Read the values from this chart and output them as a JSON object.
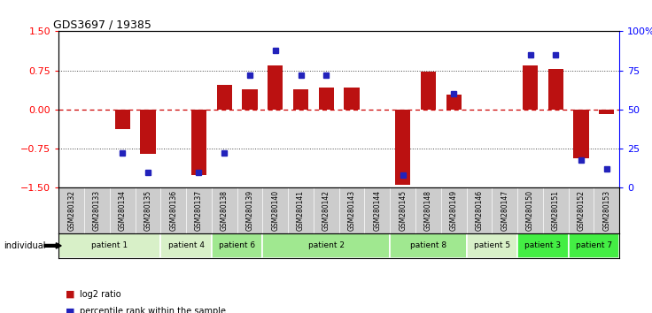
{
  "title": "GDS3697 / 19385",
  "samples": [
    "GSM280132",
    "GSM280133",
    "GSM280134",
    "GSM280135",
    "GSM280136",
    "GSM280137",
    "GSM280138",
    "GSM280139",
    "GSM280140",
    "GSM280141",
    "GSM280142",
    "GSM280143",
    "GSM280144",
    "GSM280145",
    "GSM280148",
    "GSM280149",
    "GSM280146",
    "GSM280147",
    "GSM280150",
    "GSM280151",
    "GSM280152",
    "GSM280153"
  ],
  "log2_ratio": [
    0.0,
    0.0,
    -0.38,
    -0.85,
    0.0,
    -1.25,
    0.48,
    0.38,
    0.84,
    0.38,
    0.42,
    0.42,
    0.0,
    -1.45,
    0.73,
    0.28,
    0.0,
    0.0,
    0.84,
    0.78,
    -0.93,
    -0.08
  ],
  "percentile": [
    null,
    null,
    22,
    10,
    null,
    10,
    22,
    72,
    88,
    72,
    72,
    null,
    null,
    8,
    null,
    60,
    null,
    null,
    85,
    85,
    18,
    12
  ],
  "patients": [
    {
      "label": "patient 1",
      "start": 0,
      "end": 4,
      "color": "#d8f0c8"
    },
    {
      "label": "patient 4",
      "start": 4,
      "end": 6,
      "color": "#d8f0c8"
    },
    {
      "label": "patient 6",
      "start": 6,
      "end": 8,
      "color": "#a0e890"
    },
    {
      "label": "patient 2",
      "start": 8,
      "end": 13,
      "color": "#a0e890"
    },
    {
      "label": "patient 8",
      "start": 13,
      "end": 16,
      "color": "#a0e890"
    },
    {
      "label": "patient 5",
      "start": 16,
      "end": 18,
      "color": "#d8f0c8"
    },
    {
      "label": "patient 3",
      "start": 18,
      "end": 20,
      "color": "#44ee44"
    },
    {
      "label": "patient 7",
      "start": 20,
      "end": 22,
      "color": "#44ee44"
    }
  ],
  "ylim": [
    -1.5,
    1.5
  ],
  "yticks_left": [
    -1.5,
    -0.75,
    0.0,
    0.75,
    1.5
  ],
  "yticks_right_vals": [
    0,
    25,
    50,
    75,
    100
  ],
  "yticks_right_labels": [
    "0",
    "25",
    "50",
    "75",
    "100%"
  ],
  "bar_color": "#bb1111",
  "dot_color": "#2222bb",
  "hline_color": "#cc0000",
  "dotted_color": "#444444",
  "bg_color": "#ffffff"
}
